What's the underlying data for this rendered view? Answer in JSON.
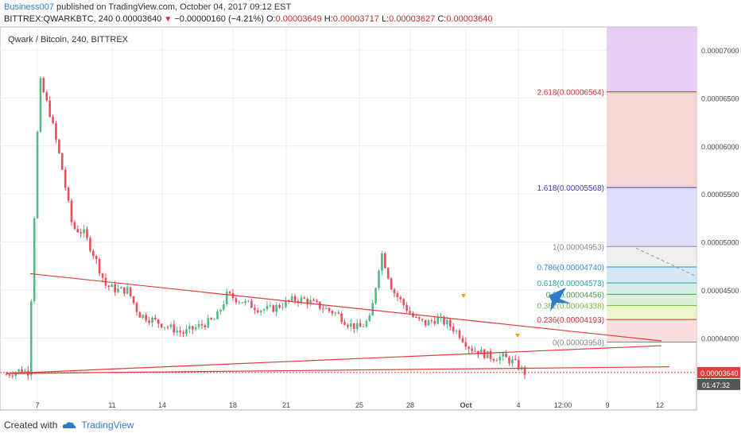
{
  "header": {
    "author": "Business007",
    "published_text": " published on TradingView.com, October 04, 2017 09:12 EST",
    "symbol": "BITTREX:QWARKBTC, 240",
    "price": "0.00003640",
    "change_symbol": "▼",
    "change": "−0.00000160 (−4.21%)",
    "o_label": "O:",
    "o_value": "0.00003649",
    "h_label": "H:",
    "h_value": "0.00003717",
    "l_label": "L:",
    "l_value": "0.00003627",
    "c_label": "C:",
    "c_value": "0.00003640"
  },
  "footer": {
    "created_with": "Created with",
    "brand": "TradingView",
    "logo_icon": "tradingview-cloud-icon"
  },
  "colors": {
    "up": "#53b987",
    "down": "#eb4d5c",
    "trendline": "#e03c3c",
    "fib_purple": "#e6cdf5",
    "fib_red": "#f5d0d0",
    "fib_blue": "#d9dcf7",
    "fib_grey": "#ececec",
    "fib_lightblue": "#d2e6f5",
    "fib_teal": "#cfece8",
    "fib_green": "#d7f0d2",
    "fib_lime": "#eaf5c8",
    "fib_pink": "#fadbdb",
    "last_price_badge": "#e03c3c",
    "timer_badge": "#555555"
  },
  "chart_data": {
    "type": "candlestick",
    "title": "Qwark / Bitcoin, 240, BITTREX",
    "x_tick_labels": [
      "7",
      "11",
      "14",
      "18",
      "21",
      "25",
      "28",
      "Oct",
      "4",
      "12:00",
      "9",
      "12"
    ],
    "y_tick_labels": [
      "0.00007000",
      "0.00006500",
      "0.00006000",
      "0.00005500",
      "0.00005000",
      "0.00004500",
      "0.00004000"
    ],
    "y_partial_label": "0.0",
    "ylim": [
      3.25e-05,
      7.24e-05
    ],
    "last_price": "0.00003640",
    "countdown": "01:47:32",
    "candle_count": 168,
    "ohlc_samples": [
      3.62e-05,
      3.66e-05,
      3.65e-05,
      6.7e-05,
      6.32e-05,
      5.8e-05,
      5.15e-05,
      5.1e-05,
      4.85e-05,
      4.55e-05,
      4.5e-05,
      4.5e-05,
      4.25e-05,
      4.2e-05,
      4.15e-05,
      4.1e-05,
      4.05e-05,
      4.1e-05,
      4.15e-05,
      4.2e-05,
      4.45e-05,
      4.4e-05,
      4.35e-05,
      4.3e-05,
      4.3e-05,
      4.35e-05,
      4.4e-05,
      4.4e-05,
      4.35e-05,
      4.3e-05,
      4.25e-05,
      4.15e-05,
      4.1e-05,
      4.2e-05,
      4.9e-05,
      4.5e-05,
      4.35e-05,
      4.2e-05,
      4.15e-05,
      4.2e-05,
      4.15e-05,
      4.05e-05,
      3.9e-05,
      3.85e-05,
      3.8e-05,
      3.8e-05,
      3.75e-05,
      3.64e-05
    ],
    "fib_levels": [
      {
        "label": "2.618(0.00006564)",
        "price": 6.564e-05,
        "color": "#cc3333"
      },
      {
        "label": "1.618(0.00005568)",
        "price": 5.568e-05,
        "color": "#3b3bb3"
      },
      {
        "label": "1(0.00004953)",
        "price": 4.953e-05,
        "color": "#888888"
      },
      {
        "label": "0.786(0.00004740)",
        "price": 4.74e-05,
        "color": "#2a8fd6"
      },
      {
        "label": "0.618(0.00004573)",
        "price": 4.573e-05,
        "color": "#26a69a"
      },
      {
        "label": "0.5(0.00004456)",
        "price": 4.456e-05,
        "color": "#43a047"
      },
      {
        "label": "0.382(0.00004338)",
        "price": 4.338e-05,
        "color": "#7cb342"
      },
      {
        "label": "0.236(0.00004193)",
        "price": 4.193e-05,
        "color": "#d32f2f"
      },
      {
        "label": "0(0.00003958)",
        "price": 3.958e-05,
        "color": "#888888"
      }
    ],
    "trendlines": [
      {
        "from": 4.67e-05,
        "to": 3.97e-05
      },
      {
        "from": 3.63e-05,
        "to": 3.92e-05
      },
      {
        "from": 3.63e-05,
        "to": 3.7e-05
      }
    ],
    "grid": true
  }
}
